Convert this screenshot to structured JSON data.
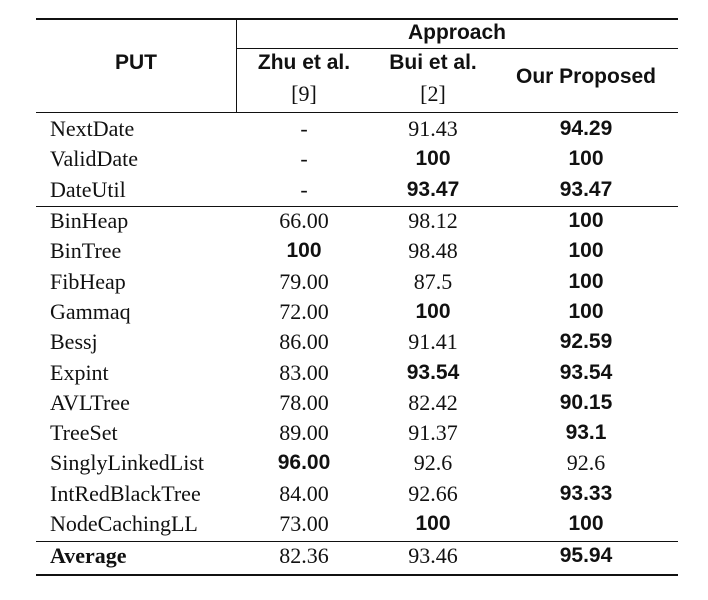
{
  "table": {
    "header": {
      "group_label": "Approach",
      "put_label": "PUT",
      "columns": [
        {
          "name": "Zhu et al.",
          "ref": "[9]"
        },
        {
          "name": "Bui et al.",
          "ref": "[2]"
        },
        {
          "name": "Our Proposed",
          "ref": ""
        }
      ]
    },
    "group1": [
      {
        "name": "NextDate",
        "values": [
          "-",
          "91.43",
          "94.29"
        ],
        "bold": [
          false,
          false,
          true
        ]
      },
      {
        "name": "ValidDate",
        "values": [
          "-",
          "100",
          "100"
        ],
        "bold": [
          false,
          true,
          true
        ]
      },
      {
        "name": "DateUtil",
        "values": [
          "-",
          "93.47",
          "93.47"
        ],
        "bold": [
          false,
          true,
          true
        ]
      }
    ],
    "group2": [
      {
        "name": "BinHeap",
        "values": [
          "66.00",
          "98.12",
          "100"
        ],
        "bold": [
          false,
          false,
          true
        ]
      },
      {
        "name": "BinTree",
        "values": [
          "100",
          "98.48",
          "100"
        ],
        "bold": [
          true,
          false,
          true
        ]
      },
      {
        "name": "FibHeap",
        "values": [
          "79.00",
          "87.5",
          "100"
        ],
        "bold": [
          false,
          false,
          true
        ]
      },
      {
        "name": "Gammaq",
        "values": [
          "72.00",
          "100",
          "100"
        ],
        "bold": [
          false,
          true,
          true
        ]
      },
      {
        "name": "Bessj",
        "values": [
          "86.00",
          "91.41",
          "92.59"
        ],
        "bold": [
          false,
          false,
          true
        ]
      },
      {
        "name": "Expint",
        "values": [
          "83.00",
          "93.54",
          "93.54"
        ],
        "bold": [
          false,
          true,
          true
        ]
      },
      {
        "name": "AVLTree",
        "values": [
          "78.00",
          "82.42",
          "90.15"
        ],
        "bold": [
          false,
          false,
          true
        ]
      },
      {
        "name": "TreeSet",
        "values": [
          "89.00",
          "91.37",
          "93.1"
        ],
        "bold": [
          false,
          false,
          true
        ]
      },
      {
        "name": "SinglyLinkedList",
        "values": [
          "96.00",
          "92.6",
          "92.6"
        ],
        "bold": [
          true,
          false,
          false
        ]
      },
      {
        "name": "IntRedBlackTree",
        "values": [
          "84.00",
          "92.66",
          "93.33"
        ],
        "bold": [
          false,
          false,
          true
        ]
      },
      {
        "name": "NodeCachingLL",
        "values": [
          "73.00",
          "100",
          "100"
        ],
        "bold": [
          false,
          true,
          true
        ]
      }
    ],
    "average": {
      "name": "Average",
      "values": [
        "82.36",
        "93.46",
        "95.94"
      ],
      "bold": [
        false,
        false,
        true
      ]
    }
  }
}
